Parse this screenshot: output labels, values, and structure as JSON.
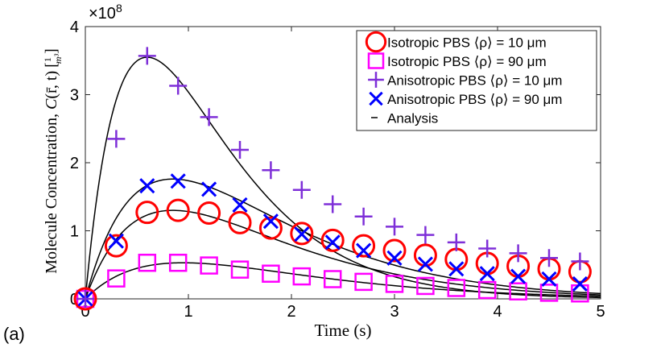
{
  "panel_label": "(a)",
  "chart_data": {
    "type": "scatter",
    "title": "",
    "xlabel": "Time (s)",
    "ylabel": "Molecule Concentration, C(r̄, t) [1/m³]",
    "ylabel_parts": {
      "text": "Molecule Concentration, ",
      "symbol": "C",
      "args": "(r̄, t)",
      "unit_num": "1",
      "unit_den": "m³"
    },
    "y_exponent": "×10⁸",
    "y_exponent_parts": {
      "base": "×10",
      "power": "8"
    },
    "xlim": [
      0,
      5
    ],
    "ylim": [
      0,
      4
    ],
    "xticks": [
      0,
      1,
      2,
      3,
      4,
      5
    ],
    "yticks": [
      0,
      1,
      2,
      3,
      4
    ],
    "grid": false,
    "legend_position": "top-right",
    "x": [
      0,
      0.3,
      0.6,
      0.9,
      1.2,
      1.5,
      1.8,
      2.1,
      2.4,
      2.7,
      3.0,
      3.3,
      3.6,
      3.9,
      4.2,
      4.5,
      4.8
    ],
    "series": [
      {
        "name": "Isotropic PBS ⟨ρ⟩ = 10 μm",
        "marker": "circle",
        "color": "#ff0000",
        "values": [
          0,
          0.78,
          1.27,
          1.3,
          1.26,
          1.12,
          1.04,
          0.96,
          0.86,
          0.78,
          0.71,
          0.64,
          0.58,
          0.52,
          0.48,
          0.44,
          0.4
        ]
      },
      {
        "name": "Isotropic PBS ⟨ρ⟩ = 90 μm",
        "marker": "square",
        "color": "#ff00ff",
        "values": [
          0,
          0.3,
          0.53,
          0.53,
          0.49,
          0.43,
          0.37,
          0.33,
          0.29,
          0.25,
          0.22,
          0.19,
          0.16,
          0.13,
          0.11,
          0.09,
          0.08
        ]
      },
      {
        "name": "Anisotropic PBS ⟨ρ⟩ = 10 μm",
        "marker": "plus",
        "color": "#7e2fd8",
        "values": [
          0,
          2.35,
          3.57,
          3.13,
          2.67,
          2.19,
          1.89,
          1.6,
          1.39,
          1.21,
          1.06,
          0.94,
          0.83,
          0.74,
          0.67,
          0.6,
          0.55
        ]
      },
      {
        "name": "Anisotropic PBS ⟨ρ⟩ = 90 μm",
        "marker": "x",
        "color": "#0000ff",
        "values": [
          0,
          0.85,
          1.66,
          1.73,
          1.61,
          1.38,
          1.14,
          0.95,
          0.83,
          0.71,
          0.6,
          0.51,
          0.44,
          0.37,
          0.33,
          0.29,
          0.22
        ]
      }
    ],
    "analysis": {
      "name": "Analysis",
      "color": "#000000",
      "curves": [
        {
          "peak_t": 0.6,
          "peak": 3.55
        },
        {
          "peak_t": 0.85,
          "peak": 1.76
        },
        {
          "peak_t": 0.85,
          "peak": 1.3
        },
        {
          "peak_t": 0.95,
          "peak": 0.53
        }
      ]
    }
  }
}
